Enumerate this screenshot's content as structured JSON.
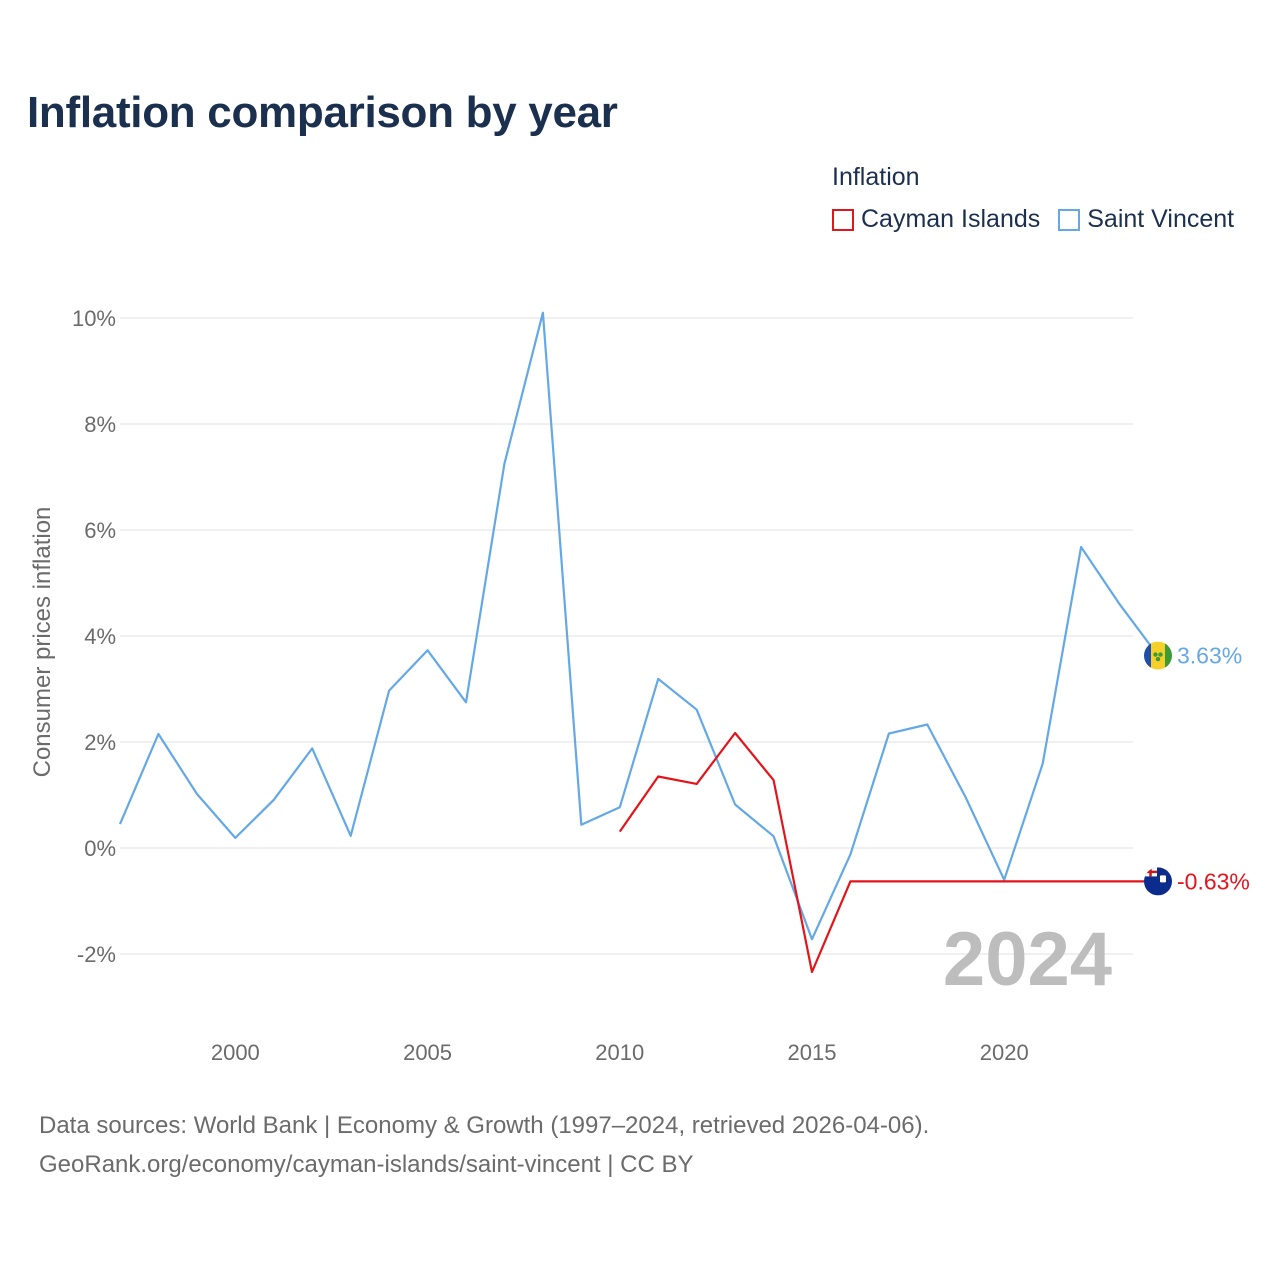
{
  "title": "Inflation comparison by year",
  "legend": {
    "title": "Inflation",
    "items": [
      {
        "label": "Cayman Islands",
        "color": "#e3141b"
      },
      {
        "label": "Saint Vincent",
        "color": "#64a8e6"
      }
    ]
  },
  "sources": {
    "line1": "Data sources: World Bank | Economy & Growth (1997–2024, retrieved 2026-04-06).",
    "line2": "GeoRank.org/economy/cayman-islands/saint-vincent | CC BY"
  },
  "chart_data": {
    "type": "line",
    "title": "Inflation comparison by year",
    "xlabel": "",
    "ylabel": "Consumer prices inflation",
    "xlim": [
      1997,
      2024
    ],
    "ylim": [
      -3,
      10.5
    ],
    "x_ticks": [
      2000,
      2005,
      2010,
      2015,
      2020
    ],
    "y_ticks": [
      -2,
      0,
      2,
      4,
      6,
      8,
      10
    ],
    "y_tick_labels": [
      "-2%",
      "0%",
      "2%",
      "4%",
      "6%",
      "8%",
      "10%"
    ],
    "current_year_label": "2024",
    "series": [
      {
        "name": "Saint Vincent",
        "color": "#64a8e6",
        "end_label": "3.63%",
        "flag": "saint-vincent-flag-icon",
        "x": [
          1997,
          1998,
          1999,
          2000,
          2001,
          2002,
          2003,
          2004,
          2005,
          2006,
          2007,
          2008,
          2009,
          2010,
          2011,
          2012,
          2013,
          2014,
          2015,
          2016,
          2017,
          2018,
          2019,
          2020,
          2021,
          2022,
          2023,
          2024
        ],
        "values": [
          0.45,
          2.15,
          1.02,
          0.19,
          0.91,
          1.88,
          0.23,
          2.97,
          3.73,
          2.75,
          7.25,
          10.1,
          0.44,
          0.77,
          3.19,
          2.61,
          0.82,
          0.22,
          -1.72,
          -0.12,
          2.16,
          2.33,
          0.95,
          -0.6,
          1.59,
          5.68,
          4.6,
          3.63
        ]
      },
      {
        "name": "Cayman Islands",
        "color": "#e3141b",
        "end_label": "-0.63%",
        "flag": "cayman-islands-flag-icon",
        "x": [
          2010,
          2011,
          2012,
          2013,
          2014,
          2015,
          2016,
          2017,
          2018,
          2019,
          2020,
          2021,
          2022,
          2023,
          2024
        ],
        "values": [
          0.31,
          1.35,
          1.21,
          2.17,
          1.28,
          -2.34,
          -0.63,
          -0.63,
          -0.63,
          -0.63,
          -0.63,
          -0.63,
          -0.63,
          -0.63,
          -0.63
        ]
      }
    ]
  }
}
